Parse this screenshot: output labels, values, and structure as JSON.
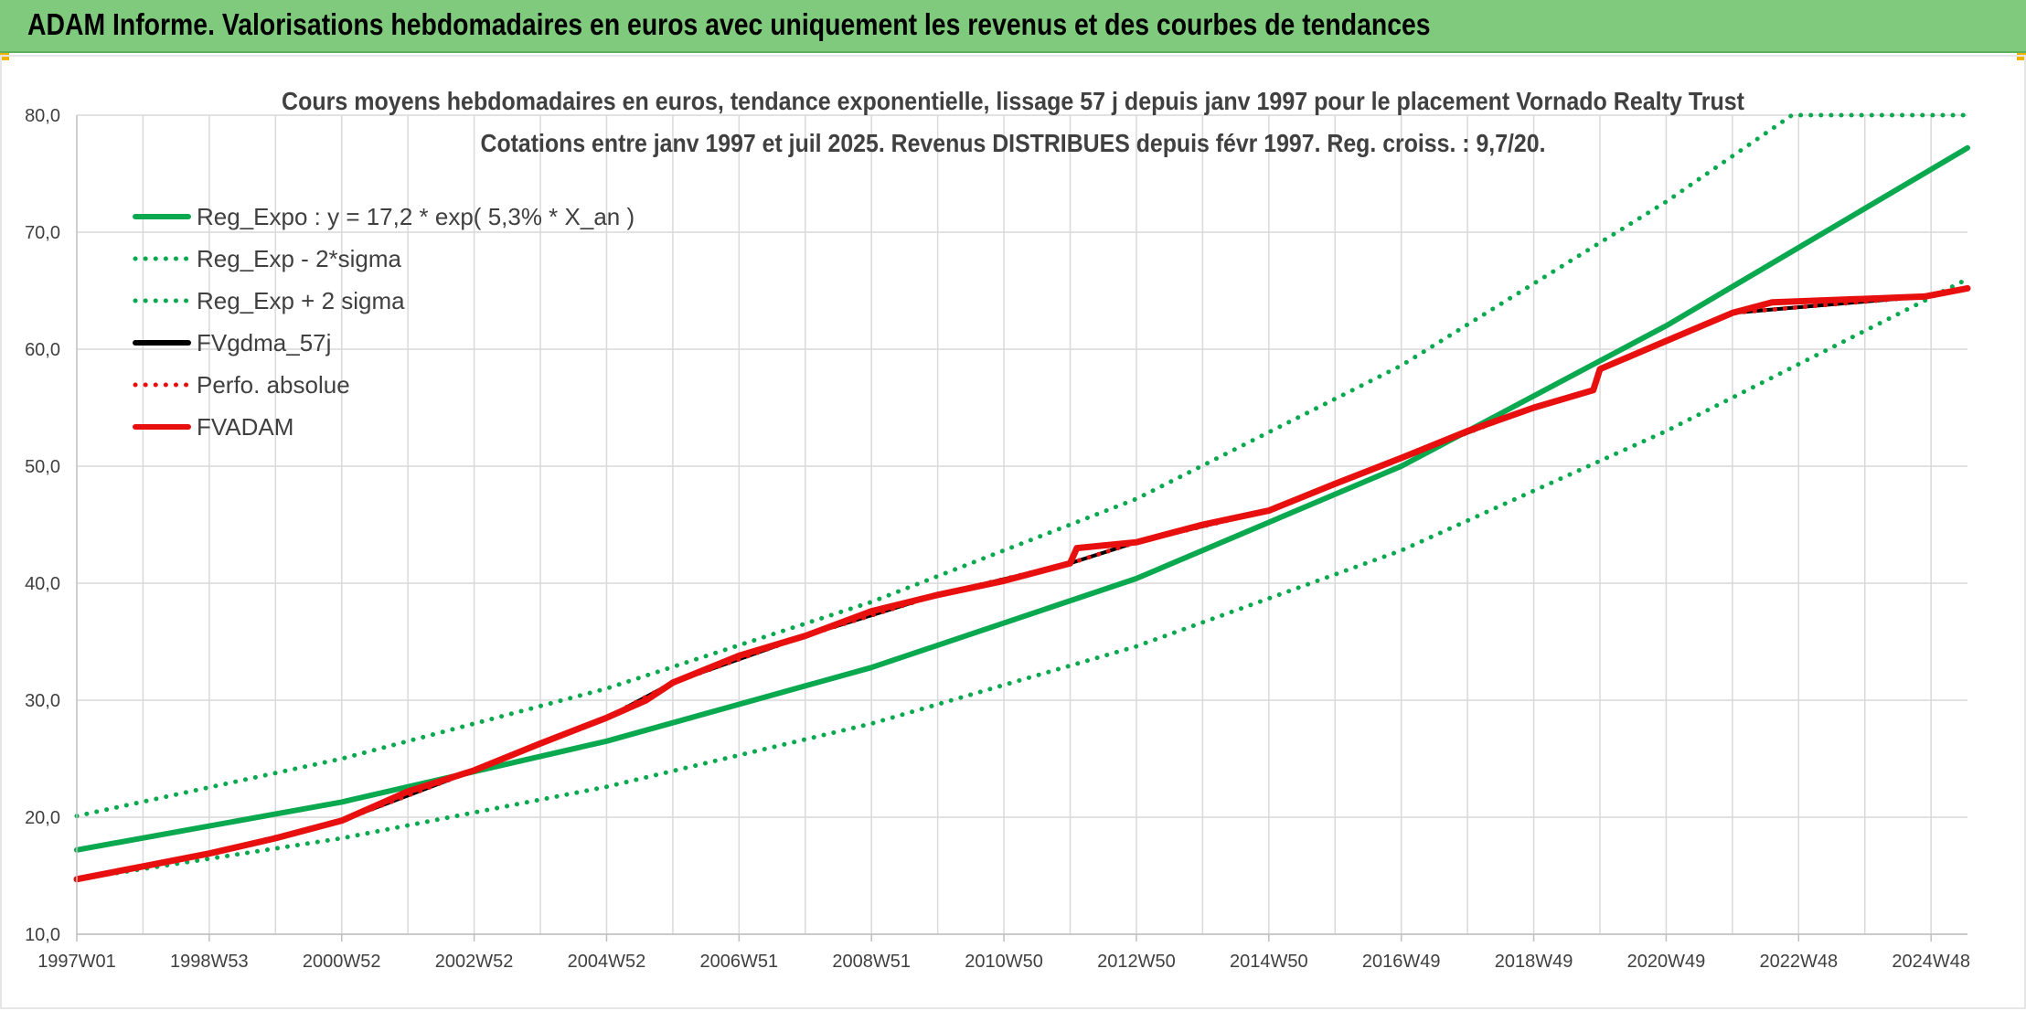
{
  "header": {
    "title": "ADAM Informe. Valorisations hebdomadaires en euros avec uniquement les revenus et des courbes de tendances"
  },
  "colors": {
    "header_bg": "#7fca7c",
    "green": "#0aa84f",
    "red": "#e8100f",
    "black": "#000000",
    "grid": "#d9d9d9"
  },
  "chart_data": {
    "type": "line",
    "title_line1": "Cours moyens hebdomadaires en euros, tendance exponentielle, lissage 57 j depuis janv 1997 pour le placement Vornado Realty Trust",
    "title_line2": "Cotations entre janv 1997 et juil 2025. Revenus DISTRIBUES depuis févr 1997. Reg. croiss. : 9,7/20.",
    "xlabel": "",
    "ylabel": "",
    "ylim": [
      10,
      80
    ],
    "xlim": [
      1997.0,
      2025.55
    ],
    "y_ticks": [
      "10,0",
      "20,0",
      "30,0",
      "40,0",
      "50,0",
      "60,0",
      "70,0",
      "80,0"
    ],
    "x_tick_labels": [
      "1997W01",
      "1998W53",
      "2000W52",
      "2002W52",
      "2004W52",
      "2006W51",
      "2008W51",
      "2010W50",
      "2012W50",
      "2014W50",
      "2016W49",
      "2018W49",
      "2020W49",
      "2022W48",
      "2024W48"
    ],
    "grid": true,
    "legend_position": "top-left",
    "series": [
      {
        "name": "Reg_Expo : y = 17,2 * exp( 5,3% *  X_an )",
        "style": "solid",
        "color": "#0aa84f",
        "x": [
          1997,
          2001,
          2005,
          2009,
          2013,
          2017,
          2021,
          2025.55
        ],
        "y": [
          17.2,
          21.3,
          26.5,
          32.8,
          40.4,
          50.0,
          62.0,
          77.2
        ]
      },
      {
        "name": "Reg_Exp - 2*sigma",
        "style": "dotted",
        "color": "#0aa84f",
        "x": [
          1997,
          2001,
          2005,
          2009,
          2013,
          2017,
          2021,
          2025.55
        ],
        "y": [
          14.7,
          18.2,
          22.6,
          28.0,
          34.6,
          42.8,
          53.0,
          66.0
        ]
      },
      {
        "name": "Reg_Exp + 2 sigma",
        "style": "dotted",
        "color": "#0aa84f",
        "x": [
          1997,
          2001,
          2005,
          2009,
          2013,
          2017,
          2021,
          2022.9,
          2025.55
        ],
        "y": [
          20.1,
          25.0,
          31.0,
          38.4,
          47.2,
          58.6,
          72.6,
          80.0,
          80.0
        ]
      },
      {
        "name": "FVgdma_57j",
        "style": "solid",
        "color": "#000000",
        "x": [
          1997,
          1999,
          2001,
          2003,
          2005,
          2006,
          2008,
          2010,
          2012,
          2013,
          2015,
          2017,
          2019,
          2019.9,
          2020,
          2021,
          2022,
          2024.9,
          2025.55
        ],
        "y": [
          14.7,
          16.9,
          19.7,
          24.0,
          28.5,
          31.5,
          35.5,
          39.0,
          41.7,
          43.5,
          46.2,
          50.7,
          55.0,
          56.5,
          58.3,
          60.7,
          63.1,
          64.5,
          65.2
        ]
      },
      {
        "name": "Perfo. absolue",
        "style": "dotted",
        "color": "#e8100f",
        "x": [
          1997,
          1999,
          2001,
          2003,
          2005,
          2006,
          2008,
          2010,
          2012,
          2013,
          2015,
          2017,
          2019,
          2019.9,
          2020,
          2021,
          2022,
          2024.9,
          2025.55
        ],
        "y": [
          14.7,
          16.9,
          19.7,
          24.0,
          28.5,
          31.5,
          35.5,
          39.0,
          41.7,
          43.5,
          46.2,
          50.7,
          55.0,
          56.5,
          58.3,
          60.7,
          63.1,
          64.5,
          65.2
        ]
      },
      {
        "name": "FVADAM",
        "style": "solid",
        "color": "#e8100f",
        "x": [
          1997,
          1998,
          1999,
          2000,
          2001,
          2002,
          2003,
          2004,
          2005,
          2005.6,
          2006,
          2007,
          2008,
          2009,
          2010,
          2011,
          2012,
          2012.1,
          2013,
          2014,
          2015,
          2016,
          2017,
          2018,
          2019,
          2019.9,
          2020,
          2021,
          2022,
          2022.6,
          2024.9,
          2025.55
        ],
        "y": [
          14.7,
          15.8,
          16.9,
          18.2,
          19.7,
          22.2,
          24.0,
          26.3,
          28.5,
          30.0,
          31.5,
          33.8,
          35.5,
          37.6,
          39.0,
          40.2,
          41.7,
          43.0,
          43.5,
          45.0,
          46.2,
          48.5,
          50.7,
          53.0,
          55.0,
          56.5,
          58.3,
          60.7,
          63.1,
          64.0,
          64.5,
          65.2
        ]
      }
    ]
  }
}
